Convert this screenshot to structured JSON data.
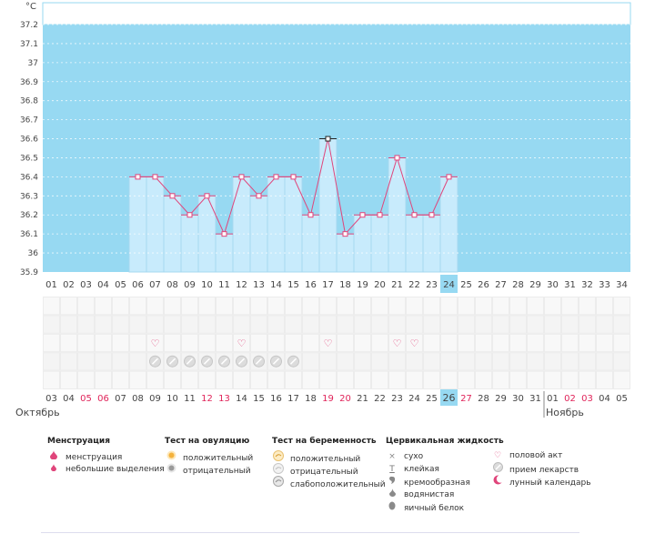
{
  "chart_data": {
    "type": "line",
    "unit_label": "°C",
    "ylim": [
      35.9,
      37.3
    ],
    "y_ticks": [
      "37.2",
      "37.1",
      "37",
      "36.9",
      "36.8",
      "36.7",
      "36.6",
      "36.5",
      "36.4",
      "36.3",
      "36.2",
      "36.1",
      "36",
      "35.9"
    ],
    "cycle_days": [
      "01",
      "02",
      "03",
      "04",
      "05",
      "06",
      "07",
      "08",
      "09",
      "10",
      "11",
      "12",
      "13",
      "14",
      "15",
      "16",
      "17",
      "18",
      "19",
      "20",
      "21",
      "22",
      "23",
      "24",
      "25",
      "26",
      "27",
      "28",
      "29",
      "30",
      "31",
      "32",
      "33",
      "34"
    ],
    "current_cycle_day": "24",
    "temperatures": [
      {
        "day": 6,
        "value": 36.4
      },
      {
        "day": 7,
        "value": 36.4
      },
      {
        "day": 8,
        "value": 36.3
      },
      {
        "day": 9,
        "value": 36.2
      },
      {
        "day": 10,
        "value": 36.3
      },
      {
        "day": 11,
        "value": 36.1
      },
      {
        "day": 12,
        "value": 36.4
      },
      {
        "day": 13,
        "value": 36.3
      },
      {
        "day": 14,
        "value": 36.4
      },
      {
        "day": 15,
        "value": 36.4
      },
      {
        "day": 16,
        "value": 36.2
      },
      {
        "day": 17,
        "value": 36.6
      },
      {
        "day": 18,
        "value": 36.1
      },
      {
        "day": 19,
        "value": 36.2
      },
      {
        "day": 20,
        "value": 36.2
      },
      {
        "day": 21,
        "value": 36.5
      },
      {
        "day": 22,
        "value": 36.2
      },
      {
        "day": 23,
        "value": 36.2
      },
      {
        "day": 24,
        "value": 36.4
      }
    ],
    "highlighted_point_day": 17,
    "intercourse_days": [
      7,
      12,
      17,
      21,
      22
    ],
    "medication_days": [
      7,
      8,
      9,
      10,
      11,
      12,
      13,
      14,
      15
    ],
    "calendar_dates": [
      "03",
      "04",
      "05",
      "06",
      "07",
      "08",
      "09",
      "10",
      "11",
      "12",
      "13",
      "14",
      "15",
      "16",
      "17",
      "18",
      "19",
      "20",
      "21",
      "22",
      "23",
      "24",
      "25",
      "26",
      "27",
      "28",
      "29",
      "30",
      "31",
      "01",
      "02",
      "03",
      "04",
      "05"
    ],
    "weekend_date_indices": [
      2,
      3,
      9,
      10,
      16,
      17,
      24,
      30,
      31
    ],
    "today_index": 23,
    "month_left": "Октябрь",
    "month_right": "Ноябрь",
    "month_split_index": 29,
    "colors": {
      "background": "#97d9f2",
      "bar": "#c8ebfc",
      "bar_border": "#a6d8f0",
      "line": "#e0457b",
      "weekend": "#e0245a",
      "today": "#97d9f2"
    }
  },
  "legend": {
    "menstruation": {
      "title": "Менструация",
      "items": [
        "менструация",
        "небольшие выделения"
      ]
    },
    "ovulation": {
      "title": "Тест на овуляцию",
      "items": [
        "положительный",
        "отрицательный"
      ]
    },
    "pregnancy": {
      "title": "Тест на беременность",
      "items": [
        "положительный",
        "отрицательный",
        "слабоположительный"
      ]
    },
    "fluid": {
      "title": "Цервикальная жидкость",
      "items": [
        "сухо",
        "клейкая",
        "кремообразная",
        "водянистая",
        "яичный белок"
      ]
    },
    "other": {
      "items": [
        "половой акт",
        "прием лекарств",
        "лунный календарь"
      ]
    }
  }
}
